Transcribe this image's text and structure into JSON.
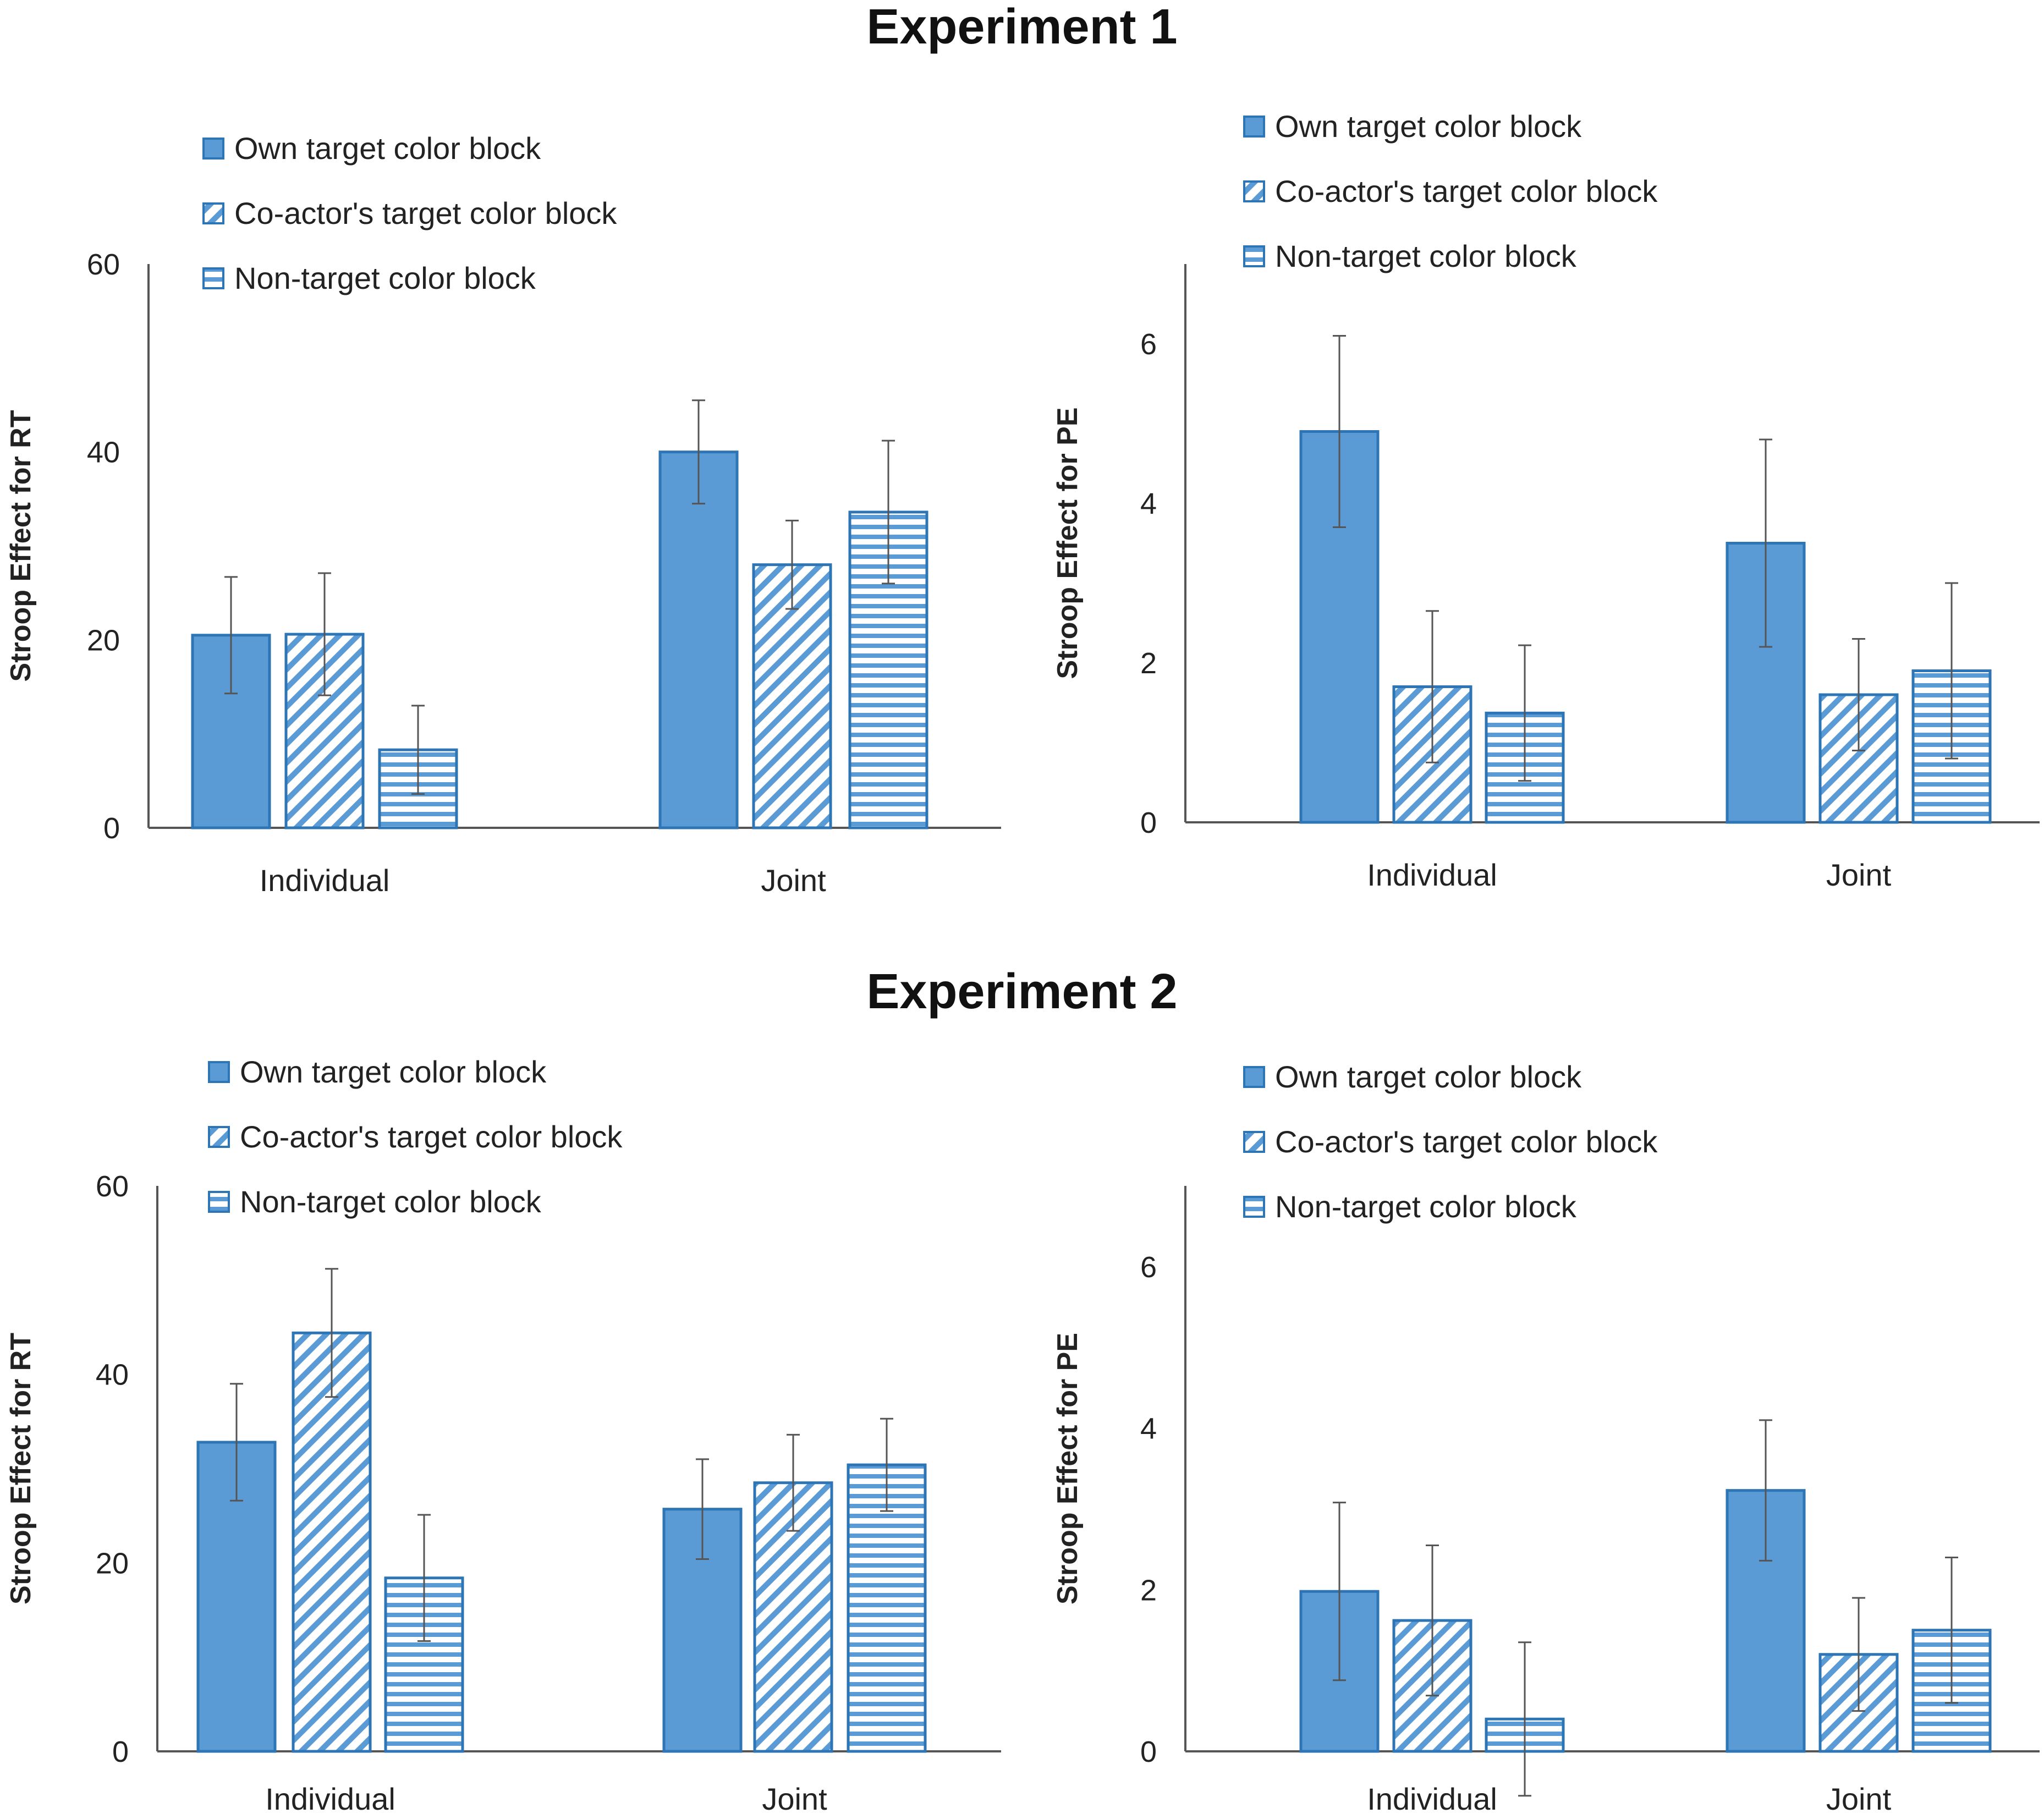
{
  "experiments": [
    {
      "title": "Experiment 1"
    },
    {
      "title": "Experiment 2"
    }
  ],
  "colors": {
    "bar": "#5b9bd5",
    "border": "#2e75b6",
    "stripe": "#ffffff",
    "axis": "#555555",
    "errorbar": "#555555"
  },
  "chart_data": [
    {
      "type": "bar",
      "experiment": "Experiment 1",
      "categories": [
        "Individual",
        "Joint"
      ],
      "series": [
        {
          "name": "Own target color block",
          "pattern": "solid",
          "values": [
            20.5,
            40
          ],
          "errors": [
            6.2,
            5.5
          ]
        },
        {
          "name": "Co-actor's target color block",
          "pattern": "diagonal",
          "values": [
            20.6,
            28
          ],
          "errors": [
            6.5,
            4.7
          ]
        },
        {
          "name": "Non-target color block",
          "pattern": "horizontal",
          "values": [
            8.3,
            33.6
          ],
          "errors": [
            4.7,
            7.6
          ]
        }
      ],
      "ylabel": "Stroop Effect for RT",
      "ylim": [
        0,
        60
      ],
      "yticks": [
        0,
        20,
        40,
        60
      ],
      "tick_labels": [
        "0",
        "20",
        "40",
        "60"
      ],
      "legend": "top-left"
    },
    {
      "type": "bar",
      "experiment": "Experiment 1",
      "categories": [
        "Individual",
        "Joint"
      ],
      "series": [
        {
          "name": "Own target color block",
          "pattern": "solid",
          "values": [
            4.9,
            3.5
          ],
          "errors": [
            1.2,
            1.3
          ]
        },
        {
          "name": "Co-actor's target color block",
          "pattern": "diagonal",
          "values": [
            1.7,
            1.6
          ],
          "errors": [
            0.95,
            0.7
          ]
        },
        {
          "name": "Non-target color block",
          "pattern": "horizontal",
          "values": [
            1.37,
            1.9
          ],
          "errors": [
            0.85,
            1.1
          ]
        }
      ],
      "ylabel": "Stroop Effect for PE",
      "ylim": [
        0,
        7
      ],
      "yticks": [
        0,
        2,
        4,
        6
      ],
      "tick_labels": [
        "0",
        "2",
        "4",
        "6"
      ],
      "legend": "top-left"
    },
    {
      "type": "bar",
      "experiment": "Experiment 2",
      "categories": [
        "Individual",
        "Joint"
      ],
      "series": [
        {
          "name": "Own target color block",
          "pattern": "solid",
          "values": [
            32.8,
            25.7
          ],
          "errors": [
            6.2,
            5.3
          ]
        },
        {
          "name": "Co-actor's target color block",
          "pattern": "diagonal",
          "values": [
            44.4,
            28.5
          ],
          "errors": [
            6.8,
            5.1
          ]
        },
        {
          "name": "Non-target color block",
          "pattern": "horizontal",
          "values": [
            18.4,
            30.4
          ],
          "errors": [
            6.7,
            4.9
          ]
        }
      ],
      "ylabel": "Stroop Effect for RT",
      "ylim": [
        0,
        60
      ],
      "yticks": [
        0,
        20,
        40,
        60
      ],
      "tick_labels": [
        "0",
        "20",
        "40",
        "60"
      ],
      "legend": "top-left"
    },
    {
      "type": "bar",
      "experiment": "Experiment 2",
      "categories": [
        "Individual",
        "Joint"
      ],
      "series": [
        {
          "name": "Own target color block",
          "pattern": "solid",
          "values": [
            1.98,
            3.23
          ],
          "errors": [
            1.1,
            0.87
          ]
        },
        {
          "name": "Co-actor's target color block",
          "pattern": "diagonal",
          "values": [
            1.62,
            1.2
          ],
          "errors": [
            0.93,
            0.7
          ]
        },
        {
          "name": "Non-target color block",
          "pattern": "horizontal",
          "values": [
            0.4,
            1.5
          ],
          "errors": [
            0.95,
            0.9
          ]
        }
      ],
      "ylabel": "Stroop Effect for PE",
      "ylim": [
        0,
        7
      ],
      "yticks": [
        0,
        2,
        4,
        6
      ],
      "tick_labels": [
        "0",
        "2",
        "4",
        "6"
      ],
      "legend": "top-left"
    }
  ]
}
